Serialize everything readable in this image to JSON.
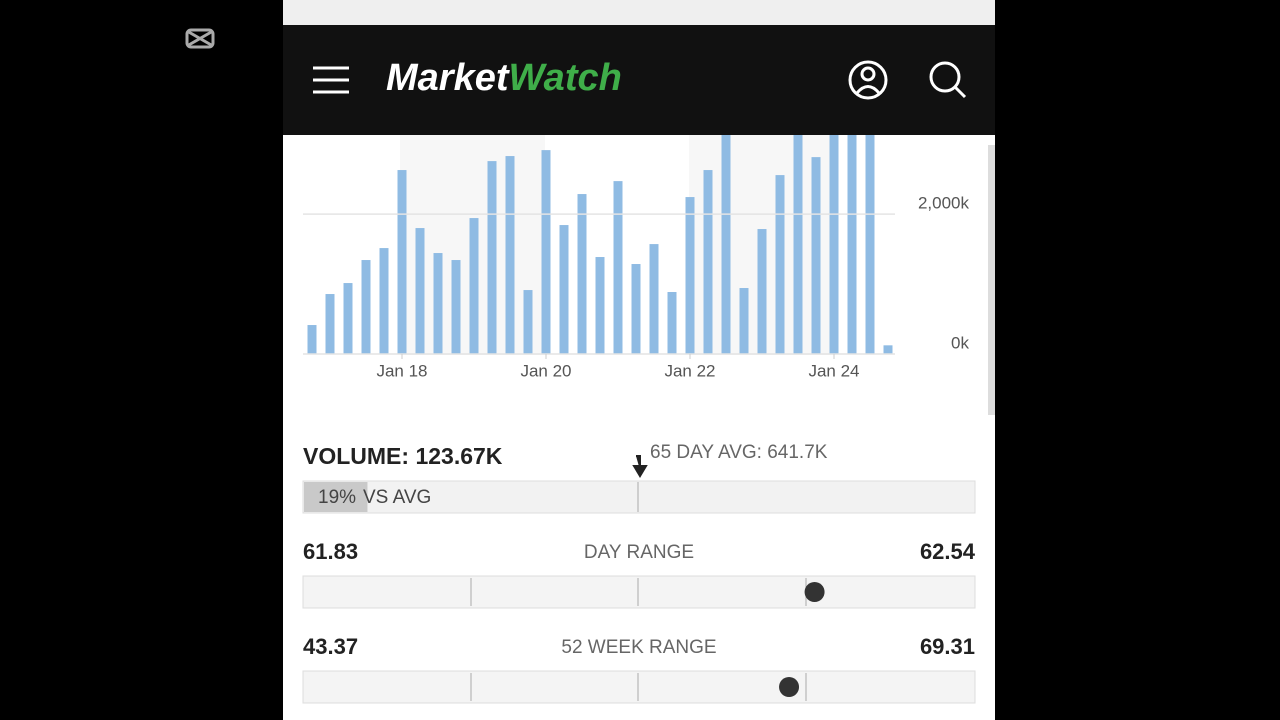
{
  "header": {
    "logo_part1": "Market",
    "logo_part2": "Watch"
  },
  "chart_data": {
    "type": "bar",
    "categories": [
      null,
      null,
      null,
      null,
      null,
      "Jan 18",
      null,
      null,
      null,
      null,
      null,
      null,
      null,
      "Jan 20",
      null,
      null,
      null,
      null,
      null,
      null,
      null,
      "Jan 22",
      null,
      null,
      null,
      null,
      null,
      null,
      null,
      "Jan 24",
      null,
      null,
      null
    ],
    "values": [
      414,
      857,
      1014,
      1343,
      1514,
      2629,
      1800,
      1443,
      1343,
      1943,
      2757,
      2829,
      914,
      2914,
      1843,
      2286,
      1386,
      2471,
      1286,
      1571,
      886,
      2243,
      2629,
      3200,
      943,
      1786,
      2557,
      3200,
      2814,
      3200,
      3200,
      3200,
      124
    ],
    "color": "#8fbbe3",
    "ylim": [
      0,
      3130
    ],
    "yticks": [
      {
        "value": 0,
        "label": "0k"
      },
      {
        "value": 2000,
        "label": "2,000k"
      }
    ],
    "grid": true
  },
  "volume": {
    "title": "VOLUME: 123.67K",
    "average": "65 DAY AVG: 641.7K",
    "vs_avg": {
      "value": 19,
      "value_label": "19%",
      "label": "VS AVG"
    }
  },
  "day_range": {
    "label": "DAY RANGE",
    "low": 61.83,
    "high": 62.54,
    "current": 62.37
  },
  "week52_range": {
    "label": "52 WEEK RANGE",
    "low": 43.37,
    "high": 69.31,
    "current": 62.11
  }
}
